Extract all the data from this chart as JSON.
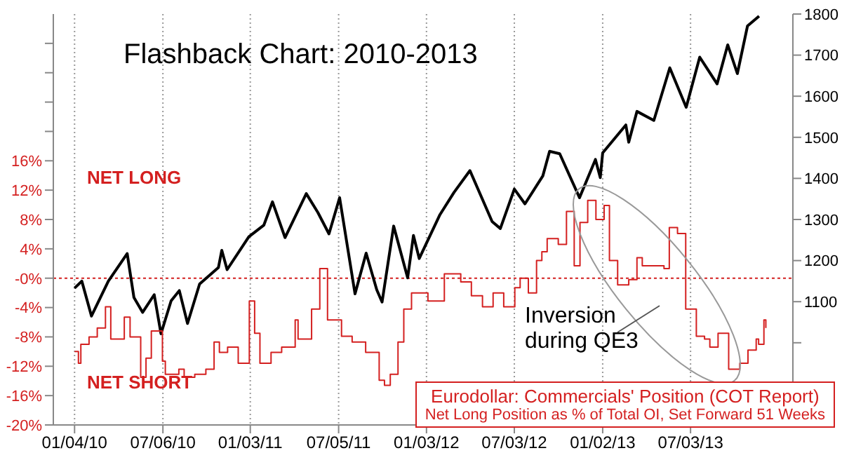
{
  "chart_data": {
    "type": "line",
    "title": "Flashback Chart: 2010-2013",
    "annotations": [
      "NET LONG",
      "NET SHORT",
      "Inversion during QE3",
      "Net Long Position as % of Total OI, Set Forward 51 Weeks"
    ],
    "xlim": [
      "2009-11-21",
      "2014-01-31"
    ],
    "xticks": [
      {
        "value": "2010-01-04",
        "label": "01/04/10"
      },
      {
        "value": "2010-07-06",
        "label": "07/06/10"
      },
      {
        "value": "2011-01-03",
        "label": "01/03/11"
      },
      {
        "value": "2011-07-05",
        "label": "07/05/11"
      },
      {
        "value": "2012-01-03",
        "label": "01/03/12"
      },
      {
        "value": "2012-07-03",
        "label": "07/03/12"
      },
      {
        "value": "2013-01-02",
        "label": "01/02/13"
      },
      {
        "value": "2013-07-03",
        "label": "07/03/13"
      }
    ],
    "ylim": [
      -20,
      36
    ],
    "yticks": [
      {
        "value": -20,
        "label": "-20%"
      },
      {
        "value": -16,
        "label": "-16%"
      },
      {
        "value": -12,
        "label": "-12%"
      },
      {
        "value": -8,
        "label": "-8%"
      },
      {
        "value": -4,
        "label": "-4%"
      },
      {
        "value": 0,
        "label": "-0%"
      },
      {
        "value": 4,
        "label": "4%"
      },
      {
        "value": 8,
        "label": "8%"
      },
      {
        "value": 12,
        "label": "12%"
      },
      {
        "value": 16,
        "label": "16%"
      },
      {
        "value": 20,
        "label": null
      },
      {
        "value": 24,
        "label": null
      },
      {
        "value": 28,
        "label": null
      },
      {
        "value": 32,
        "label": null
      }
    ],
    "y2lim": [
      800,
      1800
    ],
    "y2ticks": [
      {
        "value": 900,
        "label": null
      },
      {
        "value": 1000,
        "label": null
      },
      1100,
      1200,
      1300,
      1400,
      1500,
      1600,
      1700,
      1800
    ],
    "grid": "x",
    "legend": "bottom right",
    "marker": "none",
    "ref_lines": [
      {
        "axis": "y",
        "value": 0,
        "color": "#d42020",
        "line_style": "dotted"
      }
    ],
    "series": [
      {
        "axis": "y2",
        "color": "#000000",
        "x": [
          "2010-01-04",
          "2010-01-19",
          "2010-02-08",
          "2010-03-15",
          "2010-04-23",
          "2010-05-07",
          "2010-05-25",
          "2010-06-18",
          "2010-07-02",
          "2010-07-23",
          "2010-08-09",
          "2010-08-26",
          "2010-09-20",
          "2010-10-29",
          "2010-11-05",
          "2010-11-16",
          "2010-12-31",
          "2011-01-31",
          "2011-02-18",
          "2011-03-16",
          "2011-04-29",
          "2011-05-23",
          "2011-06-15",
          "2011-07-07",
          "2011-08-08",
          "2011-08-31",
          "2011-09-22",
          "2011-10-03",
          "2011-10-27",
          "2011-11-25",
          "2011-12-07",
          "2011-12-19",
          "2012-01-31",
          "2012-02-29",
          "2012-04-02",
          "2012-05-18",
          "2012-06-04",
          "2012-07-03",
          "2012-07-25",
          "2012-08-31",
          "2012-09-14",
          "2012-10-05",
          "2012-11-15",
          "2012-12-18",
          "2012-12-28",
          "2013-01-02",
          "2013-02-19",
          "2013-02-25",
          "2013-03-14",
          "2013-04-18",
          "2013-05-21",
          "2013-06-24",
          "2013-07-22",
          "2013-08-27",
          "2013-09-18",
          "2013-10-08",
          "2013-10-29",
          "2013-11-22"
        ],
        "values": [
          1133,
          1150,
          1065,
          1150,
          1217,
          1110,
          1074,
          1117,
          1022,
          1102,
          1127,
          1047,
          1143,
          1183,
          1225,
          1178,
          1258,
          1286,
          1343,
          1256,
          1363,
          1317,
          1265,
          1353,
          1119,
          1218,
          1129,
          1099,
          1284,
          1158,
          1261,
          1205,
          1312,
          1366,
          1419,
          1295,
          1278,
          1374,
          1338,
          1406,
          1466,
          1460,
          1353,
          1446,
          1402,
          1462,
          1530,
          1488,
          1563,
          1541,
          1669,
          1573,
          1695,
          1630,
          1725,
          1655,
          1771,
          1795
        ]
      },
      {
        "type": "step",
        "axis": "y",
        "name": "Eurodollar: Commercials' Position (COT Report)",
        "color": "#d42020",
        "x": [
          "2010-01-04",
          "2010-01-12",
          "2010-01-17",
          "2010-02-03",
          "2010-02-20",
          "2010-03-09",
          "2010-03-20",
          "2010-04-06",
          "2010-04-17",
          "2010-04-29",
          "2010-05-21",
          "2010-06-01",
          "2010-06-12",
          "2010-07-05",
          "2010-07-11",
          "2010-08-08",
          "2010-08-19",
          "2010-09-10",
          "2010-10-03",
          "2010-10-20",
          "2010-10-31",
          "2010-11-17",
          "2010-12-09",
          "2011-01-01",
          "2011-01-12",
          "2011-01-23",
          "2011-02-15",
          "2011-03-09",
          "2011-04-06",
          "2011-04-12",
          "2011-05-10",
          "2011-05-27",
          "2011-06-12",
          "2011-07-11",
          "2011-08-02",
          "2011-08-30",
          "2011-09-27",
          "2011-10-08",
          "2011-10-20",
          "2011-11-05",
          "2011-11-17",
          "2011-12-03",
          "2012-01-06",
          "2012-02-09",
          "2012-03-14",
          "2012-04-05",
          "2012-04-28",
          "2012-05-20",
          "2012-06-11",
          "2012-07-04",
          "2012-07-15",
          "2012-08-01",
          "2012-08-18",
          "2012-08-29",
          "2012-09-09",
          "2012-10-02",
          "2012-10-19",
          "2012-11-04",
          "2012-11-16",
          "2012-12-02",
          "2012-12-19",
          "2013-01-05",
          "2013-01-16",
          "2013-02-02",
          "2013-02-25",
          "2013-03-14",
          "2013-03-25",
          "2013-05-09",
          "2013-05-20",
          "2013-06-06",
          "2013-06-23",
          "2013-07-15",
          "2013-08-01",
          "2013-08-12",
          "2013-08-29",
          "2013-09-20",
          "2013-10-13",
          "2013-10-30",
          "2013-11-16",
          "2013-11-21",
          "2013-12-02",
          "2013-12-06"
        ],
        "values": [
          -10,
          -11.6,
          -9,
          -8,
          -6.8,
          -3.9,
          -8.3,
          -8.3,
          -5.3,
          -8,
          -13.5,
          -10.9,
          -7.2,
          -11.3,
          -13.1,
          -12.4,
          -13.5,
          -13.1,
          -12.4,
          -8.7,
          -10.1,
          -9.4,
          -11.6,
          -3.1,
          -7.5,
          -11.6,
          -10.1,
          -9.4,
          -5.7,
          -8.3,
          -4.2,
          1.3,
          -5.7,
          -7.9,
          -8.7,
          -10.1,
          -13.9,
          -14.6,
          -13.1,
          -8.7,
          -4.2,
          -2,
          -3.1,
          0.6,
          -0.5,
          -2.4,
          -3.9,
          -2,
          -3.9,
          -1.3,
          0,
          -2,
          2.4,
          3.6,
          5.4,
          4.6,
          9.1,
          1.7,
          7.6,
          10.6,
          8,
          9.9,
          2.4,
          -0.9,
          -0.2,
          2.8,
          1.7,
          1.3,
          6.9,
          6.1,
          -4.2,
          -7.9,
          -8.3,
          -9.4,
          -7.5,
          -12.4,
          -11.6,
          -9.8,
          -8.3,
          -9,
          -5.7,
          -6.8
        ]
      }
    ]
  }
}
